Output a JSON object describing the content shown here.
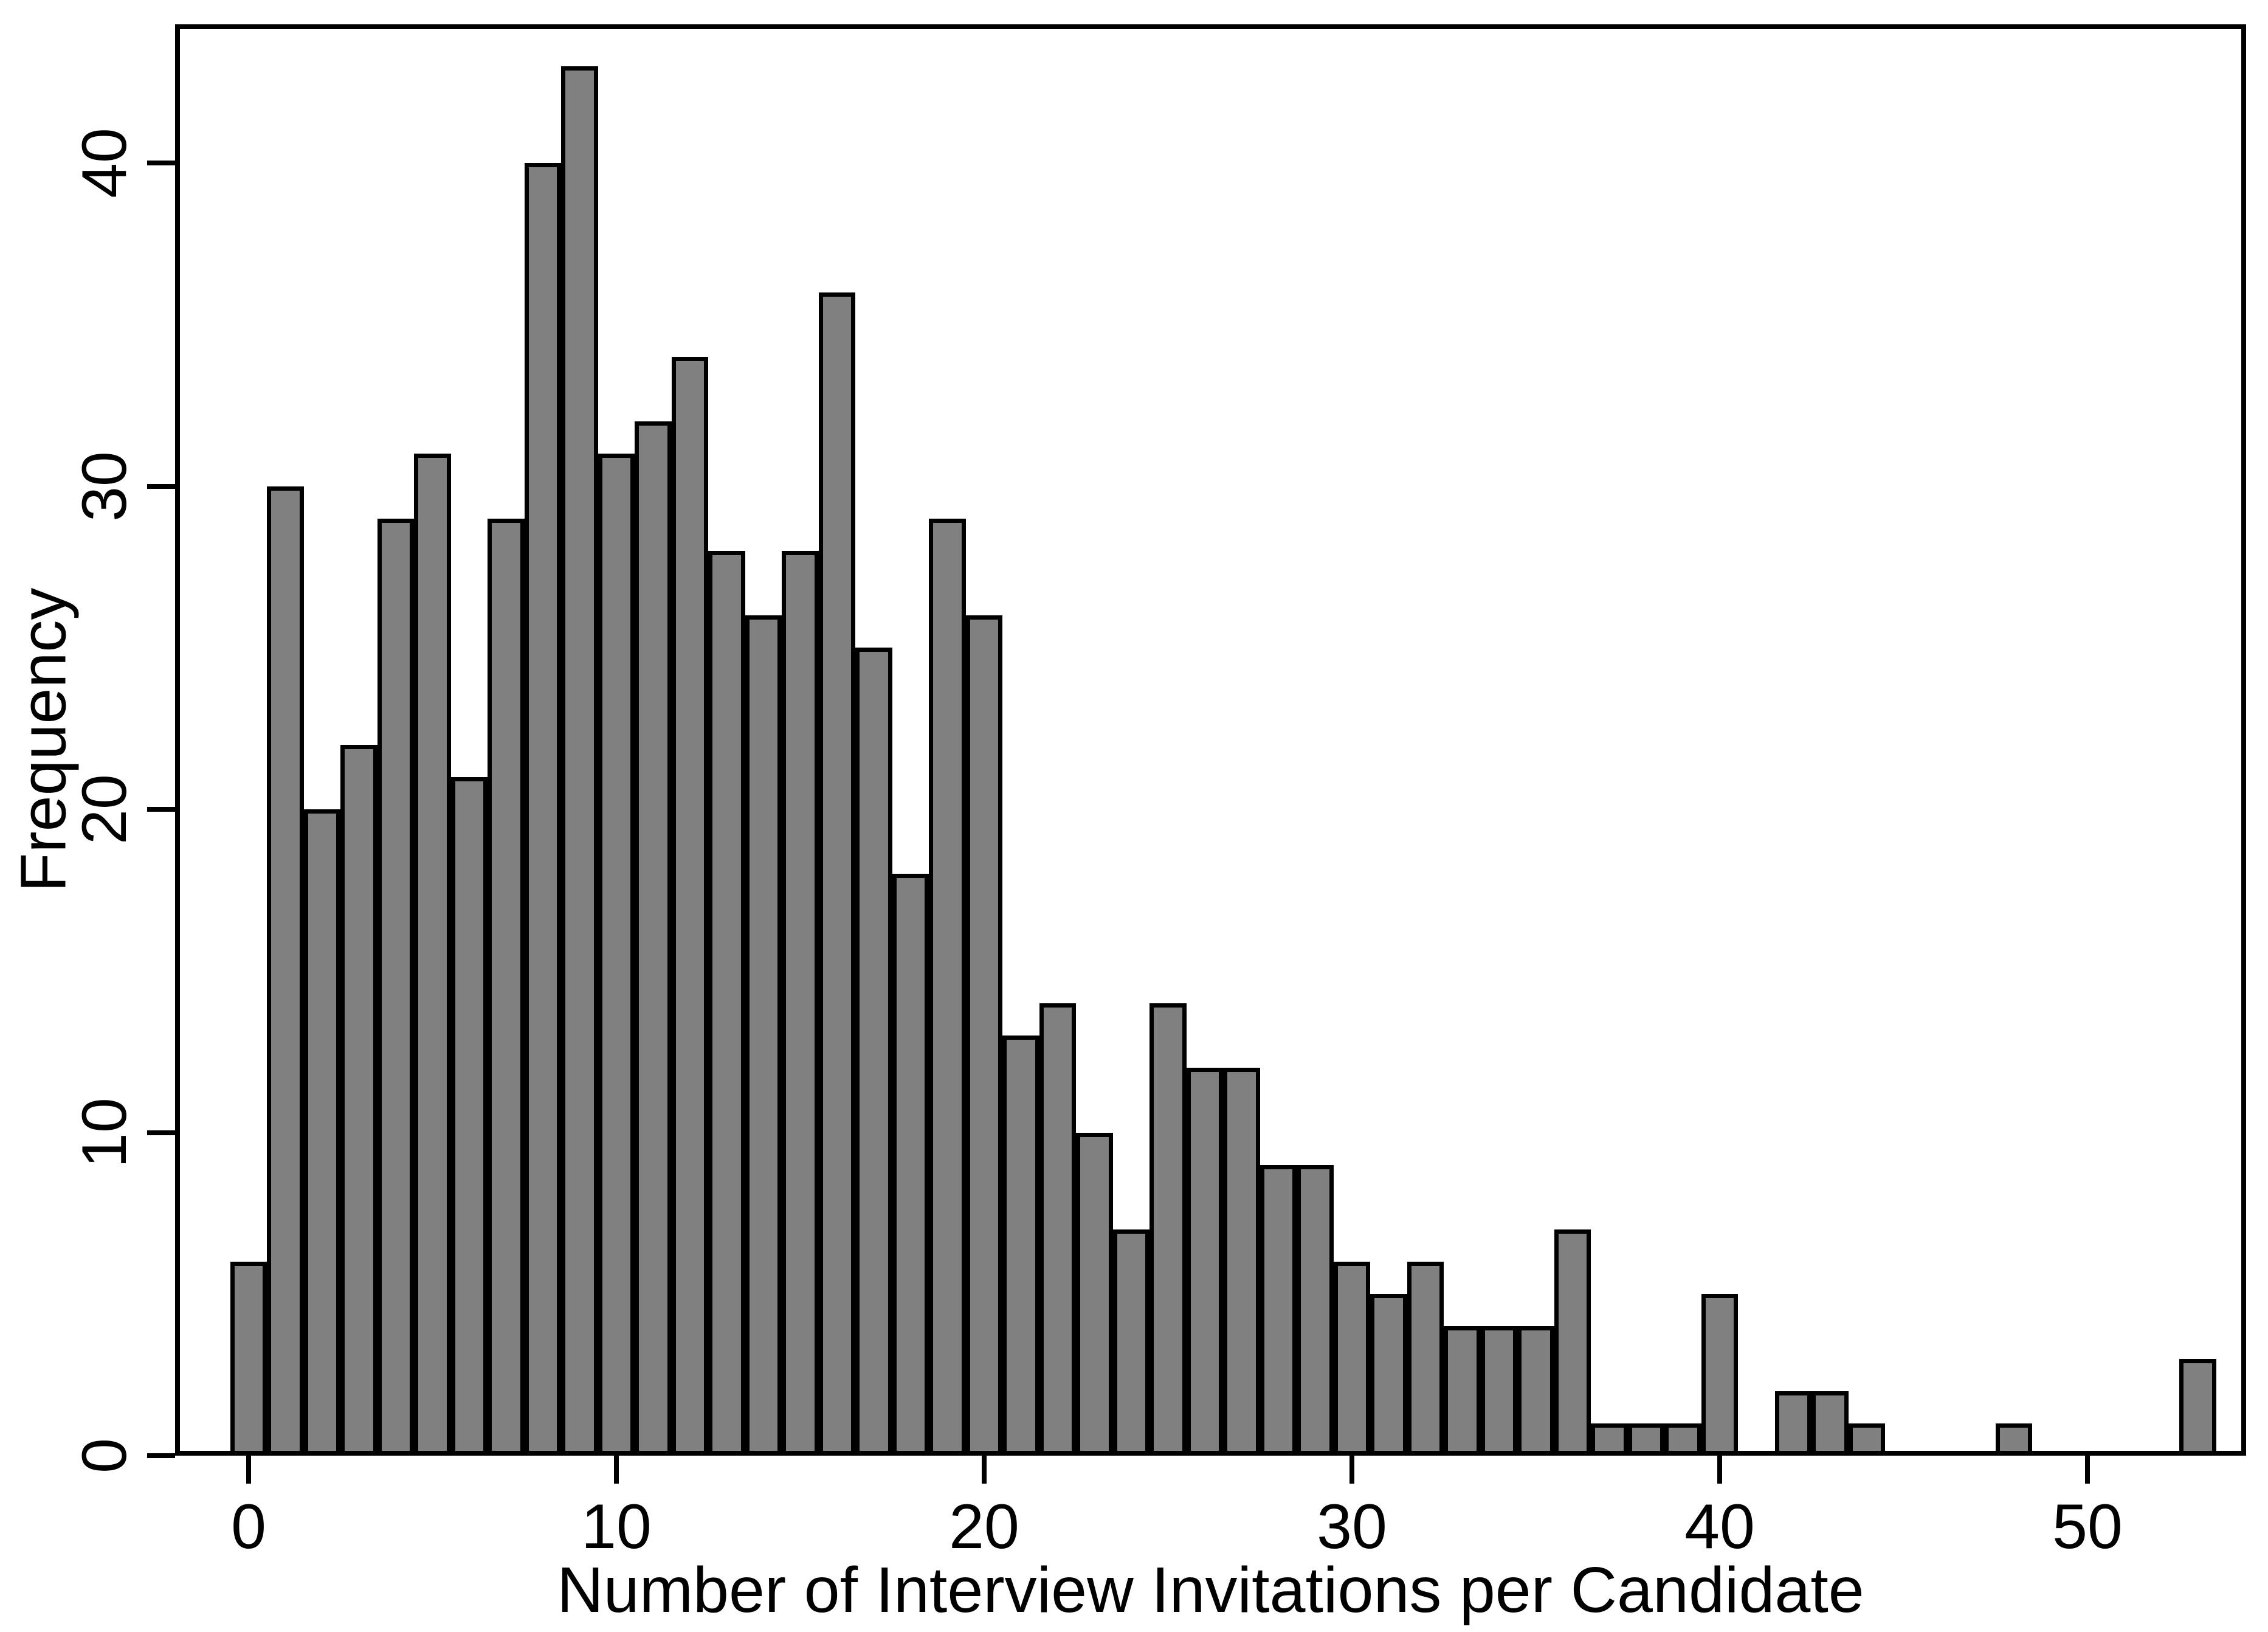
{
  "chart_data": {
    "type": "bar",
    "title": "",
    "xlabel": "Number of Interview Invitations per Candidate",
    "ylabel": "Frequency",
    "categories": [
      0,
      1,
      2,
      3,
      4,
      5,
      6,
      7,
      8,
      9,
      10,
      11,
      12,
      13,
      14,
      15,
      16,
      17,
      18,
      19,
      20,
      21,
      22,
      23,
      24,
      25,
      26,
      27,
      28,
      29,
      30,
      31,
      32,
      33,
      34,
      35,
      36,
      37,
      38,
      39,
      40,
      41,
      42,
      43,
      44,
      45,
      46,
      47,
      48,
      49,
      50,
      51,
      52,
      53
    ],
    "values": [
      6,
      30,
      20,
      22,
      29,
      31,
      21,
      29,
      40,
      43,
      31,
      32,
      34,
      28,
      26,
      28,
      36,
      25,
      18,
      29,
      26,
      13,
      14,
      10,
      7,
      14,
      12,
      12,
      9,
      9,
      6,
      5,
      6,
      4,
      4,
      4,
      7,
      1,
      1,
      1,
      5,
      0,
      2,
      2,
      1,
      0,
      0,
      0,
      1,
      0,
      0,
      0,
      0,
      3
    ],
    "x_tick_labels": [
      "0",
      "10",
      "20",
      "30",
      "40",
      "50"
    ],
    "x_tick_values": [
      0,
      10,
      20,
      30,
      40,
      50
    ],
    "y_tick_labels": [
      "0",
      "10",
      "20",
      "30",
      "40"
    ],
    "y_tick_values": [
      0,
      10,
      20,
      30,
      40
    ],
    "xlim": [
      -2,
      54.3
    ],
    "ylim": [
      0,
      44.3
    ],
    "bar_width": 1,
    "grid": "off",
    "legend": "none",
    "bar_fill_color": "#808080",
    "bar_stroke_color": "#000000",
    "axis_color": "#000000",
    "background_color": "#ffffff"
  }
}
